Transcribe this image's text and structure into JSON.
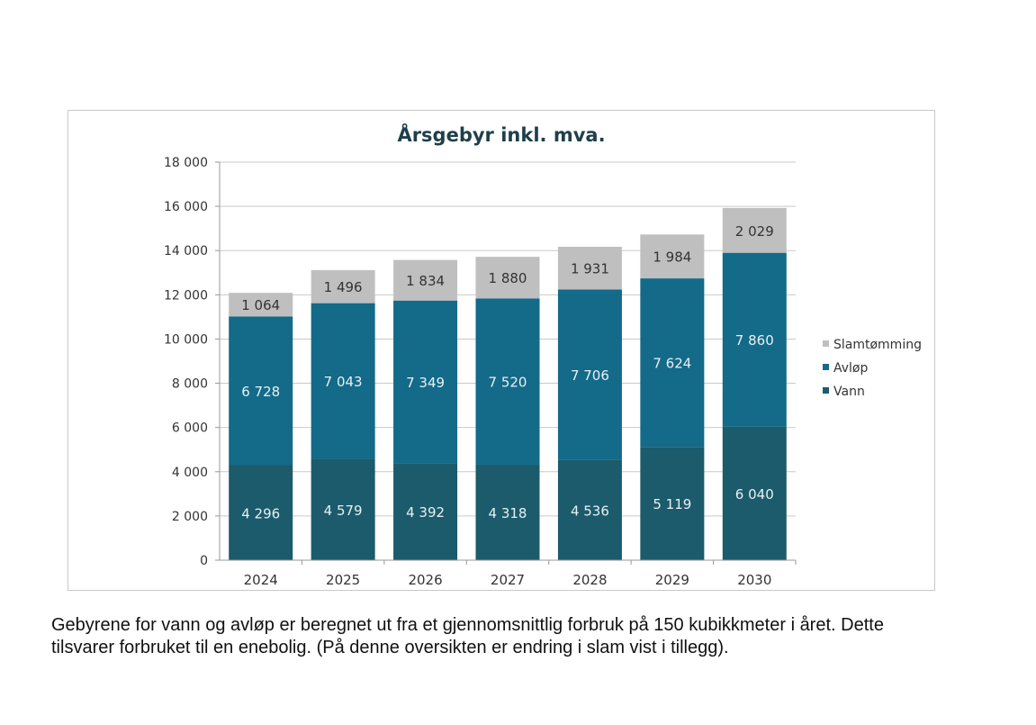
{
  "chart_data": {
    "type": "bar",
    "stacked": true,
    "title": "Årsgebyr inkl. mva.",
    "xlabel": "",
    "ylabel": "",
    "ylim": [
      0,
      18000
    ],
    "yticks": [
      0,
      2000,
      4000,
      6000,
      8000,
      10000,
      12000,
      14000,
      16000,
      18000
    ],
    "ytick_labels": [
      "0",
      "2 000",
      "4 000",
      "6 000",
      "8 000",
      "10 000",
      "12 000",
      "14 000",
      "16 000",
      "18 000"
    ],
    "grid": true,
    "legend_position": "right",
    "categories": [
      "2024",
      "2025",
      "2026",
      "2027",
      "2028",
      "2029",
      "2030"
    ],
    "series": [
      {
        "name": "Vann",
        "color": "#1b5b6b",
        "label_color": "#e8f0f2",
        "values": [
          4296,
          4579,
          4392,
          4318,
          4536,
          5119,
          6040
        ],
        "labels": [
          "4 296",
          "4 579",
          "4 392",
          "4 318",
          "4 536",
          "5 119",
          "6 040"
        ]
      },
      {
        "name": "Avløp",
        "color": "#136a89",
        "label_color": "#e8f0f2",
        "values": [
          6728,
          7043,
          7349,
          7520,
          7706,
          7624,
          7860
        ],
        "labels": [
          "6 728",
          "7 043",
          "7 349",
          "7 520",
          "7 706",
          "7 624",
          "7 860"
        ]
      },
      {
        "name": "Slamtømming",
        "color": "#bfbfbf",
        "label_color": "#333333",
        "values": [
          1064,
          1496,
          1834,
          1880,
          1931,
          1984,
          2029
        ],
        "labels": [
          "1 064",
          "1 496",
          "1 834",
          "1 880",
          "1 931",
          "1 984",
          "2 029"
        ]
      }
    ],
    "legend_order": [
      "Slamtømming",
      "Avløp",
      "Vann"
    ]
  },
  "caption": "Gebyrene for vann og avløp er beregnet ut fra et gjennomsnittlig forbruk på 150 kubikkmeter i året. Dette tilsvarer forbruket til en enebolig. (På denne oversikten er endring i slam vist i tillegg)."
}
